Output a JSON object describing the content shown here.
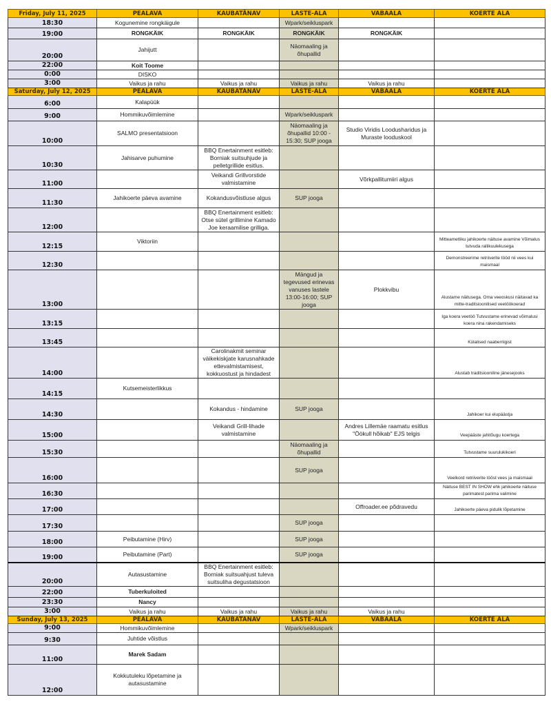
{
  "columns": [
    "PEALAVA",
    "KAUBATÄNAV",
    "LASTE-ALA",
    "VABAALA",
    "KOERTE ALA"
  ],
  "colors": {
    "header": "#fcc200",
    "time_column": "#e1e0ef",
    "laste_ala_column": "#d9d7c2"
  },
  "days": [
    {
      "date": "Friday, July 11, 2025",
      "rows": [
        {
          "time": "18:30",
          "cells": [
            "Kogunemine rongkäigule",
            "",
            "Wpark/seikluspark",
            "",
            ""
          ]
        },
        {
          "time": "19:00",
          "cells": [
            "RONGKÄIK",
            "RONGKÄIK",
            "RONGKÄIK",
            "RONGKÄIK",
            ""
          ]
        },
        {
          "time": "20:00",
          "cells": [
            "Jahijutt",
            "",
            "Näomaaling ja õhupallid",
            "",
            ""
          ]
        },
        {
          "time": "22:00",
          "cells": [
            "Koit Toome",
            "",
            "",
            "",
            ""
          ]
        },
        {
          "time": "0:00",
          "cells": [
            "DISKO",
            "",
            "",
            "",
            ""
          ]
        },
        {
          "time": "3:00",
          "cells": [
            "Vaikus ja rahu",
            "Vaikus ja rahu",
            "Vaikus ja rahu",
            "Vaikus ja rahu",
            ""
          ]
        }
      ]
    },
    {
      "date": "Saturday, July 12, 2025",
      "rows": [
        {
          "time": "6:00",
          "cells": [
            "Kalapüük",
            "",
            "",
            "",
            ""
          ]
        },
        {
          "time": "9:00",
          "cells": [
            "Hommikuvõimlemine",
            "",
            "Wpark/seikluspark",
            "",
            ""
          ]
        },
        {
          "time": "10:00",
          "cells": [
            "SALMO presentatsioon",
            "",
            "Näomaaling ja õhupallid 10:00 - 15:30;  SUP jooga",
            "Studio Viridis Loodusharidus ja Muraste looduskool",
            ""
          ]
        },
        {
          "time": "10:30",
          "cells": [
            "Jahisarve puhumine",
            "BBQ Enertainment esitleb: Borniak suitsuhjude ja pelletgrillide esitlus.",
            "",
            "",
            ""
          ]
        },
        {
          "time": "11:00",
          "cells": [
            "",
            "Veikandi Grillvorstide valmistamine",
            "",
            "Võrkpallitumiiri algus",
            ""
          ]
        },
        {
          "time": "11:30",
          "cells": [
            "Jahikoerte päeva avamine",
            "Kokandusvõistluse algus",
            "SUP jooga",
            "",
            ""
          ]
        },
        {
          "time": "12:00",
          "cells": [
            "",
            "BBQ Enertainment esitleb: Otse sütel grillimine Kamado Joe keraamilise grilliga.",
            "",
            "",
            ""
          ]
        },
        {
          "time": "12:15",
          "cells": [
            "Viktoriin",
            "",
            "",
            "",
            "Mitteametliku jahikoerte näituse avamine Võimalus tutvuda rallikuulekusega"
          ]
        },
        {
          "time": "12:30",
          "cells": [
            "",
            "",
            "",
            "",
            "Demonstreerime retriiverite tööd nii vees kui maismaal"
          ]
        },
        {
          "time": "13:00",
          "cells": [
            "",
            "",
            "Mängud ja tegevused erinevas vanuses lastele 13:00-16:00; SUP jooga",
            "Plokkvibu",
            "Alustame näitusega. Oma veeoskusi näitavad ka mitte-traditsioonilised veetöökoerad"
          ]
        },
        {
          "time": "13:15",
          "cells": [
            "",
            "",
            "",
            "",
            "Iga koera veetöö                Tutvustame erinevad võimalusi koera nina rakendamiseks"
          ]
        },
        {
          "time": "13:45",
          "cells": [
            "",
            "",
            "",
            "",
            "Külalised naaberriigist"
          ]
        },
        {
          "time": "14:00",
          "cells": [
            "",
            "Carolinakmit seminar väikekiskjate karusnahkade ettevalmistamisest, kokkuostust ja hindadest",
            "",
            "",
            "Alustab traditsiooniline jänesejooks"
          ]
        },
        {
          "time": "14:15",
          "cells": [
            "Kutsemeisterlikkus",
            "",
            "",
            "",
            ""
          ]
        },
        {
          "time": "14:30",
          "cells": [
            "",
            "Kokandus - hindamine",
            "SUP jooga",
            "",
            "Jahikoer kui elupäästja"
          ]
        },
        {
          "time": "15:00",
          "cells": [
            "",
            "Veikandi Grill-lihade valmistamine",
            "",
            "Andres Lillemäe raamatu esitlus \"Öökull hõikab\" EJS telgis",
            "Veepääste jahitõugu koertega"
          ]
        },
        {
          "time": "15:30",
          "cells": [
            "",
            "",
            "Näomaaling ja õhupallid",
            "",
            "Tutvustame suurulukikoeri"
          ]
        },
        {
          "time": "16:00",
          "cells": [
            "",
            "",
            "SUP jooga",
            "",
            "Veelkord retriiverite tööst vees ja maismaal"
          ]
        },
        {
          "time": "16:30",
          "cells": [
            "",
            "",
            "",
            "",
            "Näituse BEST IN SHOW ehk jahikoerte näituse parimatest parima valimine"
          ]
        },
        {
          "time": "17:00",
          "cells": [
            "",
            "",
            "",
            "Offroader.ee põdravedu",
            "Jahikoerte päeva pidulik lõpetamine"
          ]
        },
        {
          "time": "17:30",
          "cells": [
            "",
            "",
            "SUP jooga",
            "",
            ""
          ]
        },
        {
          "time": "18:00",
          "cells": [
            "Peibutamine (Hirv)",
            "",
            "SUP jooga",
            "",
            ""
          ]
        },
        {
          "time": "19:00",
          "cells": [
            "Peibutamine (Part)",
            "",
            "SUP jooga",
            "",
            ""
          ]
        },
        {
          "time": "20:00",
          "cells": [
            "Autasustamine",
            "BBQ Enertainment esitleb: Borniak suitsuahjust tuleva suitsuliha degustatsioon",
            "",
            "",
            ""
          ]
        },
        {
          "time": "22:00",
          "cells": [
            "Tuberkuloited",
            "",
            "",
            "",
            ""
          ]
        },
        {
          "time": "23:30",
          "cells": [
            "Nancy",
            "",
            "",
            "",
            ""
          ]
        },
        {
          "time": "3:00",
          "cells": [
            "Vaikus ja rahu",
            "Vaikus ja rahu",
            "Vaikus ja rahu",
            "Vaikus ja rahu",
            ""
          ]
        }
      ]
    },
    {
      "date": "Sunday, July 13, 2025",
      "rows": [
        {
          "time": "9:00",
          "cells": [
            "Hommikuvõimlemine",
            "",
            "Wpark/seikluspark",
            "",
            ""
          ]
        },
        {
          "time": "9:30",
          "cells": [
            "Juhtide võistlus",
            "",
            "",
            "",
            ""
          ]
        },
        {
          "time": "11:00",
          "cells": [
            "Marek Sadam",
            "",
            "",
            "",
            ""
          ]
        },
        {
          "time": "12:00",
          "cells": [
            "Kokkutuleku lõpetamine ja autasustamine",
            "",
            "",
            "",
            ""
          ]
        }
      ]
    }
  ]
}
